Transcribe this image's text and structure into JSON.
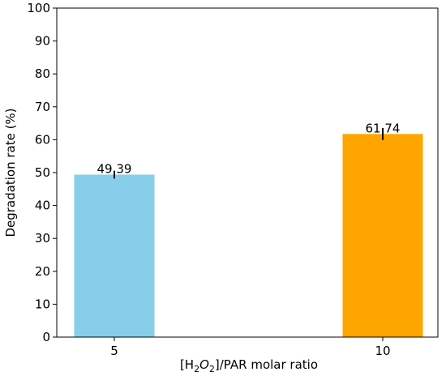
{
  "chart_data": {
    "type": "bar",
    "categories": [
      "5",
      "10"
    ],
    "values": [
      49.39,
      61.74
    ],
    "value_labels": [
      "49.39",
      "61.74"
    ],
    "errors": [
      1.2,
      1.8
    ],
    "colors": [
      "#87ceeb",
      "#ffa500"
    ],
    "title": "",
    "xlabel_prefix": "[H",
    "xlabel_sub1": "2",
    "xlabel_mid": "O",
    "xlabel_sub2": "2",
    "xlabel_suffix": "]/PAR molar ratio",
    "ylabel": "Degradation rate (%)",
    "ylim": [
      0,
      100
    ],
    "yticks": [
      0,
      10,
      20,
      30,
      40,
      50,
      60,
      70,
      80,
      90,
      100
    ],
    "grid": false,
    "legend": "none"
  }
}
